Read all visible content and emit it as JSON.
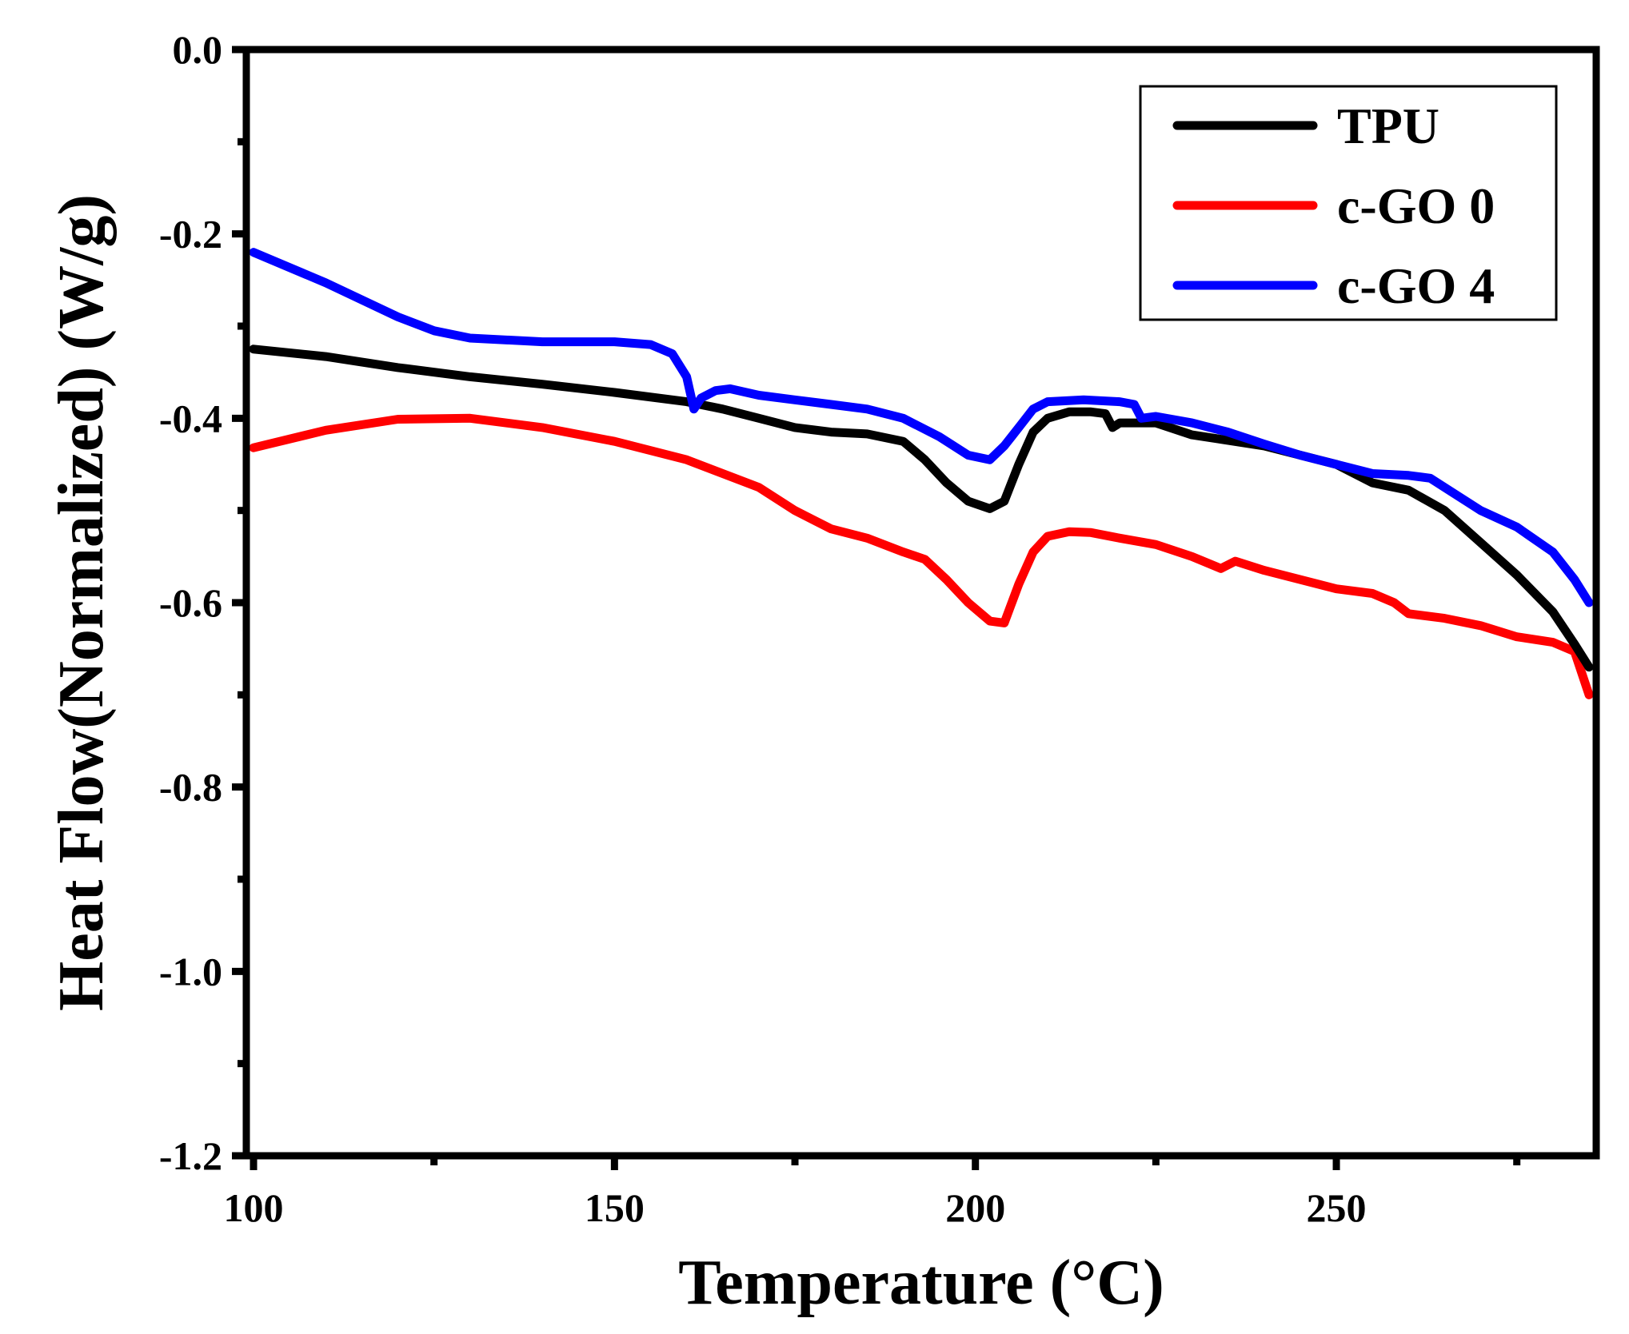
{
  "chart_data": {
    "type": "line",
    "title": "",
    "xlabel": "Temperature (°C)",
    "ylabel": "Heat Flow(Normalized) (W/g)",
    "xlim": [
      99,
      286
    ],
    "ylim": [
      -1.2,
      0.0
    ],
    "xticks": [
      100,
      150,
      200,
      250
    ],
    "xtick_labels": [
      "100",
      "150",
      "200",
      "250"
    ],
    "xminor": [
      125,
      175,
      225,
      275
    ],
    "yticks": [
      0.0,
      -0.2,
      -0.4,
      -0.6,
      -0.8,
      -1.0,
      -1.2
    ],
    "ytick_labels": [
      "0.0",
      "-0.2",
      "-0.4",
      "-0.6",
      "-0.8",
      "-1.0",
      "-1.2"
    ],
    "yminor": [
      -0.1,
      -0.3,
      -0.5,
      -0.7,
      -0.9,
      -1.1
    ],
    "legend_position": "top-right",
    "series": [
      {
        "name": "TPU",
        "color": "#000000",
        "x": [
          100,
          110,
          120,
          130,
          140,
          150,
          160,
          165,
          170,
          175,
          180,
          185,
          190,
          193,
          196,
          199,
          202,
          204,
          206,
          208,
          210,
          213,
          216,
          218,
          219,
          220,
          222,
          225,
          230,
          240,
          250,
          255,
          260,
          265,
          270,
          275,
          280,
          283,
          285
        ],
        "y": [
          -0.325,
          -0.333,
          -0.345,
          -0.355,
          -0.363,
          -0.372,
          -0.382,
          -0.39,
          -0.4,
          -0.41,
          -0.415,
          -0.417,
          -0.425,
          -0.445,
          -0.47,
          -0.49,
          -0.498,
          -0.49,
          -0.45,
          -0.415,
          -0.4,
          -0.393,
          -0.393,
          -0.395,
          -0.41,
          -0.405,
          -0.405,
          -0.405,
          -0.418,
          -0.43,
          -0.45,
          -0.47,
          -0.478,
          -0.5,
          -0.535,
          -0.57,
          -0.61,
          -0.645,
          -0.67
        ]
      },
      {
        "name": "c-GO 0",
        "color": "#ff0000",
        "x": [
          100,
          110,
          120,
          130,
          140,
          150,
          160,
          170,
          175,
          180,
          185,
          190,
          193,
          196,
          199,
          202,
          204,
          206,
          208,
          210,
          213,
          216,
          220,
          225,
          230,
          234,
          236,
          240,
          250,
          255,
          258,
          260,
          265,
          270,
          275,
          280,
          283,
          285
        ],
        "y": [
          -0.432,
          -0.413,
          -0.401,
          -0.4,
          -0.41,
          -0.425,
          -0.445,
          -0.475,
          -0.5,
          -0.52,
          -0.53,
          -0.545,
          -0.553,
          -0.575,
          -0.6,
          -0.62,
          -0.622,
          -0.58,
          -0.545,
          -0.528,
          -0.523,
          -0.524,
          -0.53,
          -0.537,
          -0.55,
          -0.563,
          -0.555,
          -0.565,
          -0.585,
          -0.59,
          -0.6,
          -0.612,
          -0.617,
          -0.625,
          -0.637,
          -0.643,
          -0.653,
          -0.7
        ]
      },
      {
        "name": "c-GO 4",
        "color": "#0000ff",
        "x": [
          100,
          110,
          120,
          125,
          130,
          140,
          150,
          155,
          158,
          160,
          161,
          162,
          164,
          166,
          170,
          175,
          180,
          185,
          190,
          195,
          199,
          202,
          204,
          206,
          208,
          210,
          215,
          220,
          222,
          223,
          225,
          230,
          235,
          240,
          245,
          250,
          255,
          260,
          263,
          266,
          270,
          275,
          280,
          283,
          285
        ],
        "y": [
          -0.22,
          -0.253,
          -0.29,
          -0.305,
          -0.313,
          -0.317,
          -0.317,
          -0.32,
          -0.33,
          -0.355,
          -0.39,
          -0.378,
          -0.37,
          -0.368,
          -0.375,
          -0.38,
          -0.385,
          -0.39,
          -0.4,
          -0.42,
          -0.44,
          -0.445,
          -0.43,
          -0.41,
          -0.39,
          -0.382,
          -0.38,
          -0.382,
          -0.385,
          -0.4,
          -0.398,
          -0.405,
          -0.415,
          -0.428,
          -0.44,
          -0.45,
          -0.46,
          -0.462,
          -0.465,
          -0.48,
          -0.5,
          -0.518,
          -0.545,
          -0.575,
          -0.6
        ]
      }
    ]
  }
}
